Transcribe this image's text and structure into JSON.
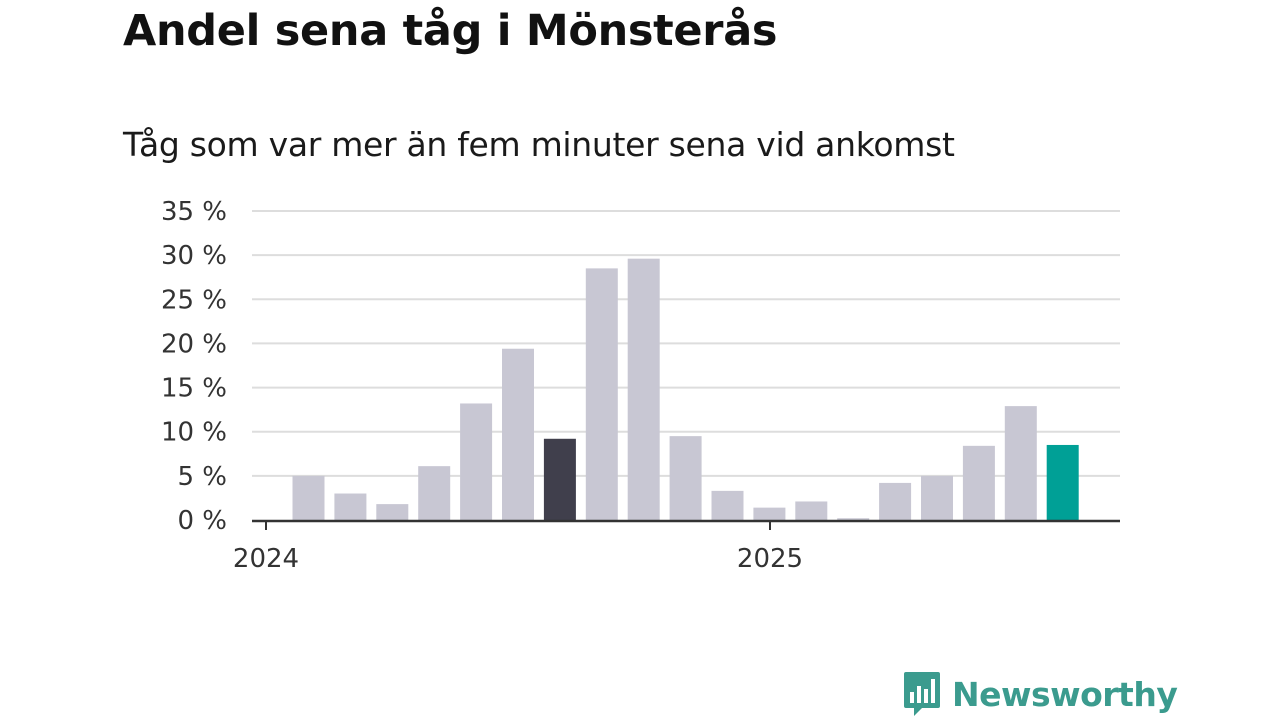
{
  "colors": {
    "bar_default": "#c8c7d3",
    "bar_highlight_dark": "#403f4c",
    "bar_highlight_current": "#00a096",
    "gridline": "#dddddd",
    "axis": "#333333",
    "logo": "#3b9b8e"
  },
  "chart_data": {
    "type": "bar",
    "title": "Andel sena tåg i Mönsterås",
    "subtitle": "Tåg som var mer än fem minuter sena vid ankomst",
    "x_tick_labels": [
      "2024",
      "2025"
    ],
    "y_ticks": [
      "0 %",
      "5 %",
      "10 %",
      "15 %",
      "20 %",
      "25 %",
      "30 %",
      "35 %"
    ],
    "ylim": [
      0,
      35
    ],
    "grid": true,
    "legend": "none",
    "bars": [
      {
        "value": 5.0,
        "color": "default"
      },
      {
        "value": 3.0,
        "color": "default"
      },
      {
        "value": 1.8,
        "color": "default"
      },
      {
        "value": 6.1,
        "color": "default"
      },
      {
        "value": 13.2,
        "color": "default"
      },
      {
        "value": 19.4,
        "color": "default"
      },
      {
        "value": 9.2,
        "color": "dark"
      },
      {
        "value": 28.5,
        "color": "default"
      },
      {
        "value": 29.6,
        "color": "default"
      },
      {
        "value": 9.5,
        "color": "default"
      },
      {
        "value": 3.3,
        "color": "default"
      },
      {
        "value": 1.4,
        "color": "default"
      },
      {
        "value": 2.1,
        "color": "default"
      },
      {
        "value": 0.2,
        "color": "default"
      },
      {
        "value": 4.2,
        "color": "default"
      },
      {
        "value": 5.0,
        "color": "default"
      },
      {
        "value": 8.4,
        "color": "default"
      },
      {
        "value": 12.9,
        "color": "default"
      },
      {
        "value": 8.5,
        "color": "current"
      }
    ]
  },
  "logo": {
    "text": "Newsworthy",
    "icon": "bar-chart-bubble-icon"
  }
}
